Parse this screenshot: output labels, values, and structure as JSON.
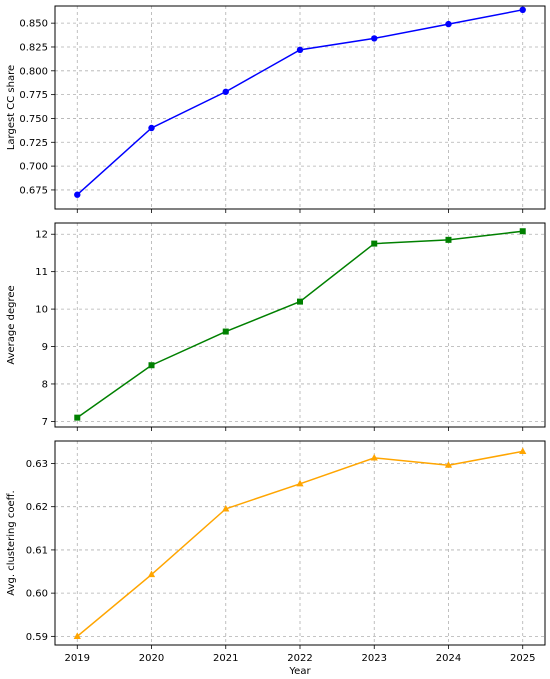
{
  "chart_data": [
    {
      "type": "line",
      "ylabel": "Largest CC share",
      "xlabel": "",
      "x": [
        2019,
        2020,
        2021,
        2022,
        2023,
        2024,
        2025
      ],
      "series": [
        {
          "values": [
            0.67,
            0.74,
            0.778,
            0.822,
            0.834,
            0.849,
            0.864
          ],
          "color": "#0000ff",
          "marker": "circle"
        }
      ],
      "ylim": [
        0.655,
        0.868
      ],
      "yticks": [
        0.675,
        0.7,
        0.725,
        0.75,
        0.775,
        0.8,
        0.825,
        0.85
      ],
      "ytick_labels": [
        "0.675",
        "0.700",
        "0.725",
        "0.750",
        "0.775",
        "0.800",
        "0.825",
        "0.850"
      ],
      "grid": true
    },
    {
      "type": "line",
      "ylabel": "Average degree",
      "xlabel": "",
      "x": [
        2019,
        2020,
        2021,
        2022,
        2023,
        2024,
        2025
      ],
      "series": [
        {
          "values": [
            7.1,
            8.5,
            9.4,
            10.2,
            11.75,
            11.85,
            12.08
          ],
          "color": "#008000",
          "marker": "square"
        }
      ],
      "ylim": [
        6.85,
        12.3
      ],
      "yticks": [
        7,
        8,
        9,
        10,
        11,
        12
      ],
      "ytick_labels": [
        "7",
        "8",
        "9",
        "10",
        "11",
        "12"
      ],
      "grid": true
    },
    {
      "type": "line",
      "ylabel": "Avg. clustering coeff.",
      "xlabel": "Year",
      "x": [
        2019,
        2020,
        2021,
        2022,
        2023,
        2024,
        2025
      ],
      "xtick_labels": [
        "2019",
        "2020",
        "2021",
        "2022",
        "2023",
        "2024",
        "2025"
      ],
      "series": [
        {
          "values": [
            0.59,
            0.6043,
            0.6195,
            0.6253,
            0.6313,
            0.6296,
            0.6328
          ],
          "color": "#ffa500",
          "marker": "triangle"
        }
      ],
      "ylim": [
        0.588,
        0.6352
      ],
      "yticks": [
        0.59,
        0.6,
        0.61,
        0.62,
        0.63
      ],
      "ytick_labels": [
        "0.59",
        "0.60",
        "0.61",
        "0.62",
        "0.63"
      ],
      "grid": true
    }
  ]
}
